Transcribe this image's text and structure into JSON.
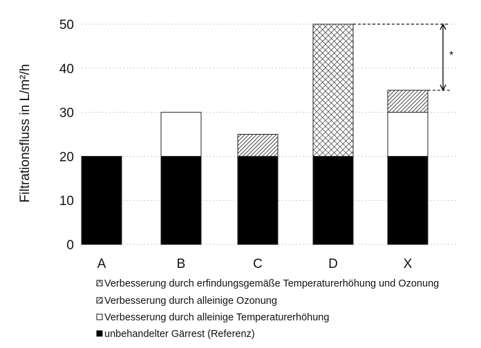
{
  "chart_data": {
    "type": "bar",
    "stacked": true,
    "title": "",
    "xlabel": "",
    "ylabel": "Filtrationsfluss in L/m²/h",
    "ylim": [
      0,
      50
    ],
    "yticks": [
      0,
      10,
      20,
      30,
      40,
      50
    ],
    "grid": true,
    "legend_position": "bottom",
    "categories": [
      "A",
      "B",
      "C",
      "D",
      "X"
    ],
    "series": [
      {
        "name": "unbehandelter Gärrest (Referenz)",
        "pattern": "solid-black",
        "values": [
          20,
          20,
          20,
          20,
          20
        ]
      },
      {
        "name": "Verbesserung durch alleinige Temperaturerhöhung",
        "pattern": "white",
        "values": [
          0,
          10,
          0,
          0,
          10
        ]
      },
      {
        "name": "Verbesserung durch alleinige Ozonung",
        "pattern": "diagonal-hatch",
        "values": [
          0,
          0,
          5,
          0,
          5
        ]
      },
      {
        "name": "Verbesserung durch erfindungsgemäße Temperaturerhöhung und Ozonung",
        "pattern": "crosshatch",
        "values": [
          0,
          0,
          0,
          30,
          0
        ]
      }
    ],
    "legend_order": [
      3,
      2,
      1,
      0
    ],
    "annotations": [
      {
        "text": "*",
        "type": "bracket",
        "from_value": 35,
        "to_value": 50
      }
    ],
    "colors": {
      "reference": "#000000",
      "edge": "#222222"
    }
  }
}
